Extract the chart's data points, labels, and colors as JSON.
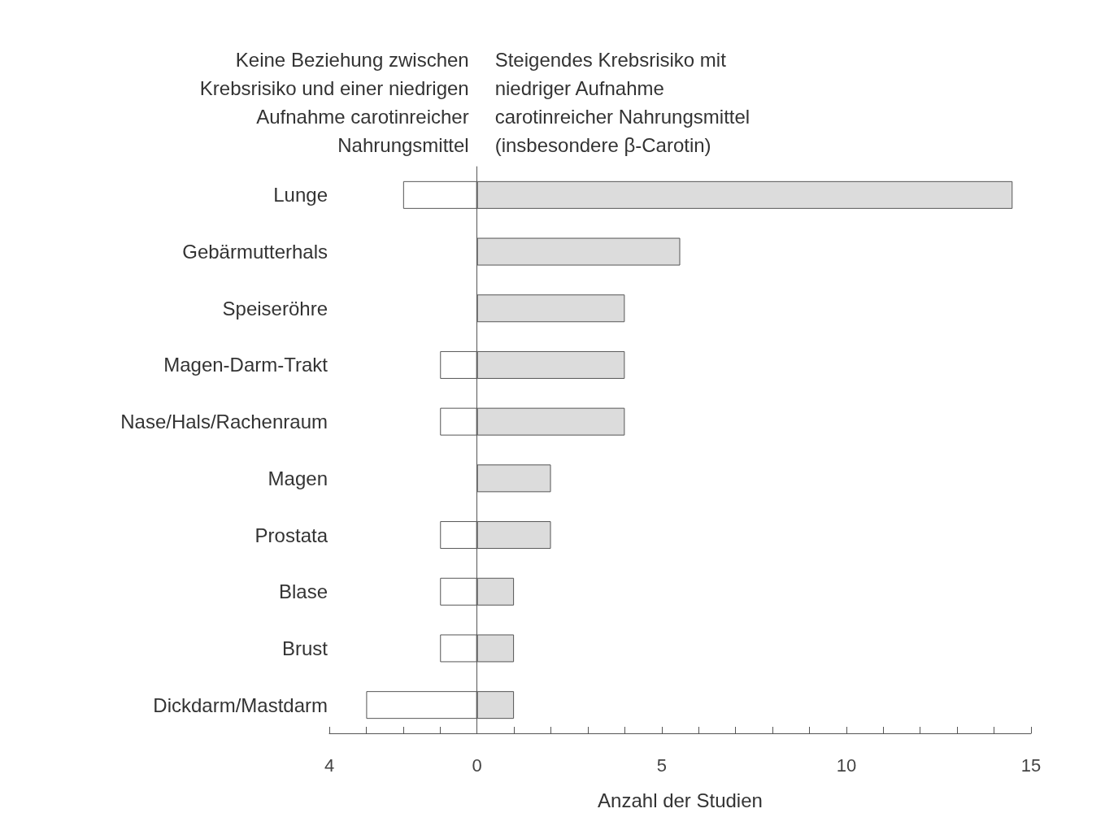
{
  "chart_data": {
    "type": "bar",
    "orientation": "horizontal",
    "stacked": true,
    "xlabel": "Anzahl der Studien",
    "annotations": [
      "Keine Beziehung zwischen\nKrebsrisiko und einer niedrigen\nAufnahme carotinreicher\nNahrungsmittel",
      "Steigendes Krebsrisiko mit\nniedriger Aufnahme\ncarotinreicher Nahrungsmittel\n(insbesondere β-Carotin)"
    ],
    "categories": [
      "Lunge",
      "Gebärmutterhals",
      "Speiseröhre",
      "Magen-Darm-Trakt",
      "Nase/Hals/Rachenraum",
      "Magen",
      "Prostata",
      "Blase",
      "Brust",
      "Dickdarm/Mastdarm"
    ],
    "series": [
      {
        "color": "#ffffff",
        "values": [
          -2,
          null,
          null,
          -1,
          -1,
          null,
          -1,
          -1,
          -1,
          -3
        ]
      },
      {
        "color": "#dcdcdc",
        "values": [
          14.5,
          5.5,
          4,
          4,
          4,
          2,
          2,
          1,
          1,
          1
        ]
      }
    ],
    "xlim": [
      -4,
      15
    ],
    "xticks": [
      {
        "value": -4,
        "label": "4"
      },
      {
        "value": -3,
        "label": null
      },
      {
        "value": -2,
        "label": null
      },
      {
        "value": -1,
        "label": null
      },
      0,
      {
        "value": 1,
        "label": null
      },
      {
        "value": 2,
        "label": null
      },
      {
        "value": 3,
        "label": null
      },
      {
        "value": 4,
        "label": null
      },
      5,
      {
        "value": 6,
        "label": null
      },
      {
        "value": 7,
        "label": null
      },
      {
        "value": 8,
        "label": null
      },
      {
        "value": 9,
        "label": null
      },
      10,
      {
        "value": 11,
        "label": null
      },
      {
        "value": 12,
        "label": null
      },
      {
        "value": 13,
        "label": null
      },
      {
        "value": 14,
        "label": null
      },
      15
    ]
  }
}
